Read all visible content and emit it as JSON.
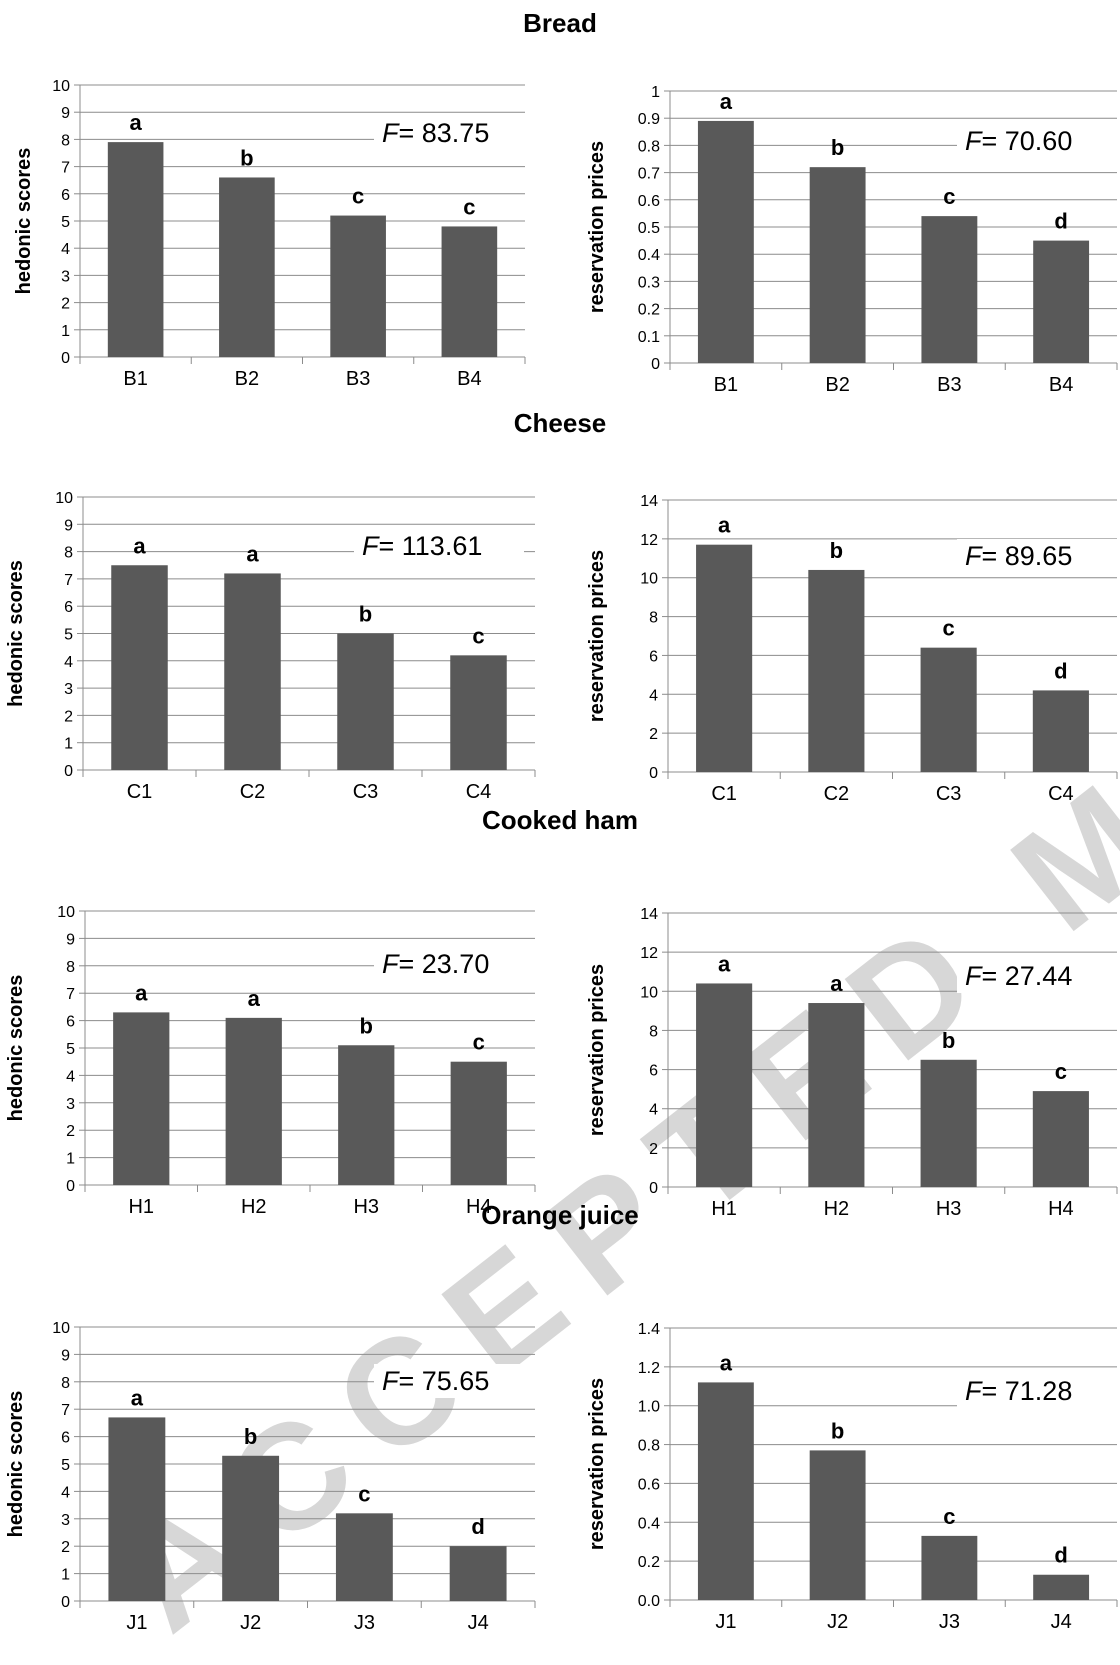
{
  "sections": [
    {
      "title": "Bread"
    },
    {
      "title": "Cheese"
    },
    {
      "title": "Cooked ham"
    },
    {
      "title": "Orange juice"
    }
  ],
  "chart_data": [
    {
      "type": "bar",
      "section": "Bread",
      "ylabel": "hedonic scores",
      "categories": [
        "B1",
        "B2",
        "B3",
        "B4"
      ],
      "values": [
        7.9,
        6.6,
        5.2,
        4.8
      ],
      "letters": [
        "a",
        "b",
        "c",
        "c"
      ],
      "f_label": "F",
      "f_value": "= 83.75",
      "ylim": [
        0,
        10
      ],
      "yticks": [
        "0",
        "1",
        "2",
        "3",
        "4",
        "5",
        "6",
        "7",
        "8",
        "9",
        "10"
      ],
      "grid": true,
      "color": "#595959"
    },
    {
      "type": "bar",
      "section": "Bread",
      "ylabel": "reservation prices",
      "categories": [
        "B1",
        "B2",
        "B3",
        "B4"
      ],
      "values": [
        0.89,
        0.72,
        0.54,
        0.45
      ],
      "letters": [
        "a",
        "b",
        "c",
        "d"
      ],
      "f_label": "F",
      "f_value": "= 70.60",
      "ylim": [
        0,
        1
      ],
      "yticks": [
        "0",
        "0.1",
        "0.2",
        "0.3",
        "0.4",
        "0.5",
        "0.6",
        "0.7",
        "0.8",
        "0.9",
        "1"
      ],
      "grid": true,
      "color": "#595959"
    },
    {
      "type": "bar",
      "section": "Cheese",
      "ylabel": "hedonic scores",
      "categories": [
        "C1",
        "C2",
        "C3",
        "C4"
      ],
      "values": [
        7.5,
        7.2,
        5.0,
        4.2
      ],
      "letters": [
        "a",
        "a",
        "b",
        "c"
      ],
      "f_label": "F",
      "f_value": "= 113.61",
      "ylim": [
        0,
        10
      ],
      "yticks": [
        "0",
        "1",
        "2",
        "3",
        "4",
        "5",
        "6",
        "7",
        "8",
        "9",
        "10"
      ],
      "grid": true,
      "color": "#595959"
    },
    {
      "type": "bar",
      "section": "Cheese",
      "ylabel": "reservation prices",
      "categories": [
        "C1",
        "C2",
        "C3",
        "C4"
      ],
      "values": [
        11.7,
        10.4,
        6.4,
        4.2
      ],
      "letters": [
        "a",
        "b",
        "c",
        "d"
      ],
      "f_label": "F",
      "f_value": "= 89.65",
      "ylim": [
        0,
        14
      ],
      "yticks": [
        "0",
        "2",
        "4",
        "6",
        "8",
        "10",
        "12",
        "14"
      ],
      "grid": true,
      "color": "#595959"
    },
    {
      "type": "bar",
      "section": "Cooked ham",
      "ylabel": "hedonic scores",
      "categories": [
        "H1",
        "H2",
        "H3",
        "H4"
      ],
      "values": [
        6.3,
        6.1,
        5.1,
        4.5
      ],
      "letters": [
        "a",
        "a",
        "b",
        "c"
      ],
      "f_label": "F",
      "f_value": "= 23.70",
      "ylim": [
        0,
        10
      ],
      "yticks": [
        "0",
        "1",
        "2",
        "3",
        "4",
        "5",
        "6",
        "7",
        "8",
        "9",
        "10"
      ],
      "grid": true,
      "color": "#595959"
    },
    {
      "type": "bar",
      "section": "Cooked ham",
      "ylabel": "reservation prices",
      "categories": [
        "H1",
        "H2",
        "H3",
        "H4"
      ],
      "values": [
        10.4,
        9.4,
        6.5,
        4.9
      ],
      "letters": [
        "a",
        "a",
        "b",
        "c"
      ],
      "f_label": "F",
      "f_value": "= 27.44",
      "ylim": [
        0,
        14
      ],
      "yticks": [
        "0",
        "2",
        "4",
        "6",
        "8",
        "10",
        "12",
        "14"
      ],
      "grid": true,
      "color": "#595959"
    },
    {
      "type": "bar",
      "section": "Orange juice",
      "ylabel": "hedonic scores",
      "categories": [
        "J1",
        "J2",
        "J3",
        "J4"
      ],
      "values": [
        6.7,
        5.3,
        3.2,
        2.0
      ],
      "letters": [
        "a",
        "b",
        "c",
        "d"
      ],
      "f_label": "F",
      "f_value": "= 75.65",
      "ylim": [
        0,
        10
      ],
      "yticks": [
        "0",
        "1",
        "2",
        "3",
        "4",
        "5",
        "6",
        "7",
        "8",
        "9",
        "10"
      ],
      "grid": true,
      "color": "#595959"
    },
    {
      "type": "bar",
      "section": "Orange juice",
      "ylabel": "reservation prices",
      "categories": [
        "J1",
        "J2",
        "J3",
        "J4"
      ],
      "values": [
        1.12,
        0.77,
        0.33,
        0.13
      ],
      "letters": [
        "a",
        "b",
        "c",
        "d"
      ],
      "f_label": "F",
      "f_value": "= 71.28",
      "ylim": [
        0,
        1.4
      ],
      "yticks": [
        "0.0",
        "0.2",
        "0.4",
        "0.6",
        "0.8",
        "1.0",
        "1.2",
        "1.4"
      ],
      "grid": true,
      "color": "#595959"
    }
  ],
  "watermark": {
    "text": "ACCEPTED MANUSCRIPT",
    "color": "#d7d7d7"
  }
}
